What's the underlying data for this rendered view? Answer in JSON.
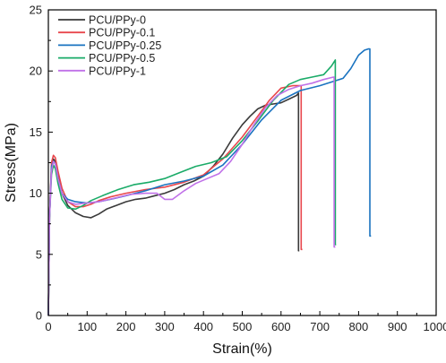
{
  "chart_data": {
    "type": "line",
    "xlabel": "Strain(%)",
    "ylabel": "Stress(MPa)",
    "xlim": [
      0,
      1000
    ],
    "ylim": [
      0,
      25
    ],
    "xticks": [
      "0",
      "100",
      "200",
      "300",
      "400",
      "500",
      "600",
      "700",
      "800",
      "900",
      "1000"
    ],
    "yticks": [
      "0",
      "5",
      "10",
      "15",
      "20",
      "25"
    ],
    "grid": false,
    "legend_position": "top-left",
    "series": [
      {
        "name": "PCU/PPy-0",
        "color": "#3a3a3a",
        "x": [
          0,
          3,
          8,
          13,
          18,
          25,
          35,
          50,
          70,
          90,
          110,
          130,
          150,
          175,
          200,
          225,
          250,
          275,
          300,
          325,
          350,
          375,
          400,
          425,
          450,
          475,
          500,
          520,
          540,
          560,
          580,
          600,
          620,
          640,
          645,
          645,
          647
        ],
        "y": [
          0,
          8,
          12.2,
          12.8,
          12.6,
          11.5,
          10.0,
          9.0,
          8.4,
          8.1,
          8.0,
          8.3,
          8.7,
          9.0,
          9.3,
          9.5,
          9.6,
          9.8,
          10.0,
          10.3,
          10.7,
          11.0,
          11.4,
          12.2,
          13.2,
          14.5,
          15.6,
          16.3,
          16.9,
          17.2,
          17.3,
          17.4,
          17.7,
          18.0,
          18.2,
          5.3,
          5.3
        ]
      },
      {
        "name": "PCU/PPy-0.1",
        "color": "#e8474d",
        "x": [
          0,
          3,
          8,
          13,
          18,
          25,
          35,
          50,
          70,
          90,
          110,
          130,
          160,
          200,
          250,
          300,
          350,
          400,
          450,
          500,
          540,
          570,
          600,
          630,
          650,
          652,
          652,
          655
        ],
        "y": [
          0,
          8,
          12.5,
          13.1,
          12.9,
          11.8,
          10.4,
          9.3,
          8.9,
          8.9,
          9.1,
          9.4,
          9.7,
          10.0,
          10.3,
          10.5,
          10.9,
          11.5,
          12.8,
          14.6,
          16.3,
          17.6,
          18.6,
          18.8,
          18.8,
          18.8,
          5.4,
          5.4
        ]
      },
      {
        "name": "PCU/PPy-0.25",
        "color": "#1a73c0",
        "x": [
          0,
          3,
          8,
          13,
          18,
          25,
          35,
          50,
          70,
          100,
          130,
          160,
          200,
          250,
          300,
          350,
          400,
          450,
          500,
          550,
          600,
          650,
          700,
          740,
          760,
          780,
          800,
          815,
          825,
          829,
          829,
          832
        ],
        "y": [
          0,
          8,
          12.2,
          12.6,
          12.4,
          11.2,
          10.0,
          9.5,
          9.3,
          9.2,
          9.3,
          9.5,
          9.8,
          10.2,
          10.7,
          11.0,
          11.4,
          12.3,
          14.0,
          16.0,
          17.6,
          18.4,
          18.8,
          19.2,
          19.4,
          20.2,
          21.3,
          21.7,
          21.8,
          21.8,
          6.5,
          6.5
        ]
      },
      {
        "name": "PCU/PPy-0.5",
        "color": "#1aab68",
        "x": [
          0,
          3,
          8,
          13,
          18,
          25,
          35,
          50,
          70,
          90,
          110,
          140,
          180,
          220,
          260,
          300,
          340,
          380,
          420,
          460,
          500,
          540,
          580,
          620,
          650,
          680,
          710,
          730,
          740,
          740,
          742
        ],
        "y": [
          0,
          8,
          11.5,
          12.3,
          12.0,
          10.8,
          9.5,
          8.8,
          8.7,
          9.0,
          9.4,
          9.8,
          10.3,
          10.7,
          10.9,
          11.2,
          11.7,
          12.2,
          12.5,
          13.0,
          14.3,
          15.9,
          17.6,
          18.9,
          19.3,
          19.5,
          19.7,
          20.4,
          20.9,
          5.8,
          5.8
        ]
      },
      {
        "name": "PCU/PPy-1",
        "color": "#c071e8",
        "x": [
          0,
          3,
          8,
          13,
          18,
          25,
          35,
          50,
          70,
          100,
          130,
          170,
          210,
          250,
          280,
          300,
          320,
          350,
          380,
          410,
          440,
          470,
          500,
          530,
          560,
          590,
          620,
          650,
          680,
          710,
          735,
          737,
          737,
          740
        ],
        "y": [
          0,
          8,
          11.8,
          12.6,
          12.4,
          11.2,
          10.0,
          9.3,
          9.1,
          9.2,
          9.3,
          9.6,
          9.9,
          10.0,
          10.0,
          9.5,
          9.5,
          10.2,
          10.8,
          11.2,
          11.6,
          12.6,
          14.0,
          15.6,
          17.0,
          18.0,
          18.5,
          18.8,
          19.0,
          19.3,
          19.5,
          19.5,
          5.6,
          5.6
        ]
      }
    ]
  }
}
